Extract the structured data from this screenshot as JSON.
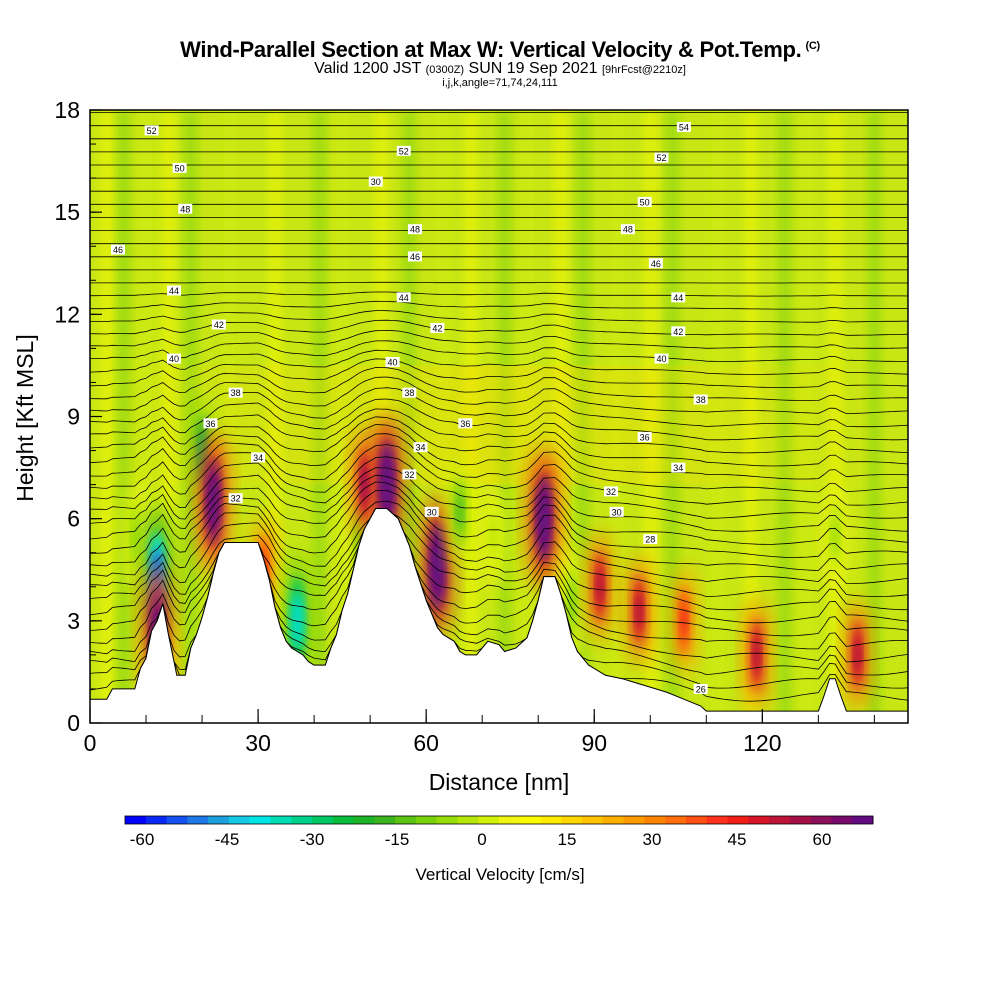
{
  "header": {
    "title": "Wind-Parallel Section at Max W: Vertical Velocity & Pot.Temp.",
    "title_mark": "(C)",
    "valid_prefix": "Valid 1200 JST",
    "valid_z": "(0300Z)",
    "valid_date": "SUN 19 Sep 2021",
    "valid_fcst": "[9hrFcst@2210z]",
    "section_params": "i,j,k,angle=71,74,24,111"
  },
  "chart_data": {
    "type": "heatmap",
    "title": "Wind-Parallel Section at Max W: Vertical Velocity & Pot.Temp.",
    "xlabel": "Distance [nm]",
    "ylabel": "Height [Kft MSL]",
    "xlim": [
      0,
      146
    ],
    "ylim": [
      0,
      18
    ],
    "x_ticks": [
      0,
      30,
      60,
      90,
      120
    ],
    "y_ticks": [
      0,
      3,
      6,
      9,
      12,
      15,
      18
    ],
    "terrain_profile": [
      [
        0,
        0.7
      ],
      [
        3,
        0.7
      ],
      [
        4,
        1.0
      ],
      [
        8,
        1.0
      ],
      [
        8.5,
        1.3
      ],
      [
        9,
        1.6
      ],
      [
        10,
        1.9
      ],
      [
        10.5,
        2.3
      ],
      [
        11,
        2.7
      ],
      [
        12,
        3.0
      ],
      [
        13,
        3.5
      ],
      [
        14,
        2.6
      ],
      [
        15,
        1.8
      ],
      [
        15.5,
        1.4
      ],
      [
        17,
        1.4
      ],
      [
        17.5,
        1.8
      ],
      [
        18,
        2.2
      ],
      [
        19,
        2.6
      ],
      [
        20,
        3.1
      ],
      [
        21,
        3.7
      ],
      [
        22,
        4.4
      ],
      [
        23,
        5.0
      ],
      [
        24,
        5.3
      ],
      [
        25,
        5.3
      ],
      [
        30,
        5.3
      ],
      [
        31,
        4.8
      ],
      [
        32,
        4.2
      ],
      [
        33,
        3.4
      ],
      [
        34,
        2.8
      ],
      [
        35,
        2.4
      ],
      [
        36,
        2.2
      ],
      [
        37,
        2.1
      ],
      [
        38,
        2.0
      ],
      [
        39,
        1.8
      ],
      [
        40,
        1.7
      ],
      [
        42,
        1.7
      ],
      [
        43,
        2.2
      ],
      [
        44,
        2.6
      ],
      [
        45,
        3.3
      ],
      [
        46,
        3.8
      ],
      [
        47,
        4.5
      ],
      [
        48,
        5.2
      ],
      [
        49,
        5.7
      ],
      [
        50,
        6.0
      ],
      [
        51,
        6.3
      ],
      [
        53,
        6.3
      ],
      [
        55,
        6.0
      ],
      [
        56,
        5.6
      ],
      [
        57,
        5.2
      ],
      [
        58,
        4.6
      ],
      [
        59,
        4.1
      ],
      [
        60,
        3.6
      ],
      [
        61,
        3.2
      ],
      [
        62,
        2.8
      ],
      [
        63,
        2.6
      ],
      [
        64,
        2.5
      ],
      [
        65,
        2.4
      ],
      [
        66,
        2.1
      ],
      [
        67,
        2.0
      ],
      [
        69,
        2.0
      ],
      [
        70,
        2.2
      ],
      [
        71,
        2.4
      ],
      [
        73,
        2.3
      ],
      [
        74,
        2.1
      ],
      [
        76,
        2.2
      ],
      [
        78,
        2.5
      ],
      [
        79,
        3.0
      ],
      [
        80,
        3.6
      ],
      [
        81,
        4.3
      ],
      [
        83,
        4.3
      ],
      [
        84,
        3.8
      ],
      [
        85,
        3.2
      ],
      [
        86,
        2.5
      ],
      [
        87,
        2.1
      ],
      [
        88,
        1.9
      ],
      [
        89,
        1.7
      ],
      [
        90,
        1.6
      ],
      [
        92,
        1.4
      ],
      [
        95,
        1.3
      ],
      [
        97,
        1.2
      ],
      [
        99,
        1.1
      ],
      [
        101,
        1.0
      ],
      [
        103,
        0.9
      ],
      [
        106,
        0.7
      ],
      [
        109,
        0.5
      ],
      [
        110,
        0.35
      ],
      [
        130,
        0.35
      ],
      [
        131,
        0.8
      ],
      [
        132,
        1.3
      ],
      [
        133,
        1.3
      ],
      [
        134,
        0.8
      ],
      [
        135,
        0.35
      ],
      [
        146,
        0.35
      ]
    ],
    "w_cells": [
      {
        "x": 8,
        "y": 5.5,
        "w": -18
      },
      {
        "x": 12,
        "y": 4.3,
        "w": -55
      },
      {
        "x": 12,
        "y": 2.6,
        "w": 45
      },
      {
        "x": 20,
        "y": 8.0,
        "w": -35
      },
      {
        "x": 22,
        "y": 6.5,
        "w": 50
      },
      {
        "x": 31,
        "y": 4.5,
        "w": 25
      },
      {
        "x": 37,
        "y": 3.0,
        "w": -45
      },
      {
        "x": 48,
        "y": 5.5,
        "w": -20
      },
      {
        "x": 49,
        "y": 7.0,
        "w": 40
      },
      {
        "x": 53,
        "y": 7.0,
        "w": 65
      },
      {
        "x": 62,
        "y": 4.6,
        "w": 60
      },
      {
        "x": 66,
        "y": 6.2,
        "w": -25
      },
      {
        "x": 72,
        "y": 5.5,
        "w": -15
      },
      {
        "x": 81,
        "y": 6.0,
        "w": 55
      },
      {
        "x": 86,
        "y": 3.5,
        "w": -20
      },
      {
        "x": 91,
        "y": 4.0,
        "w": 35
      },
      {
        "x": 98,
        "y": 3.3,
        "w": 35
      },
      {
        "x": 106,
        "y": 3.0,
        "w": 25
      },
      {
        "x": 119,
        "y": 2.0,
        "w": 35
      },
      {
        "x": 133,
        "y": 5.5,
        "w": -18
      },
      {
        "x": 137,
        "y": 2.0,
        "w": 35
      }
    ],
    "theta_labels": [
      {
        "x": 11,
        "y": 17.4,
        "label": "52"
      },
      {
        "x": 16,
        "y": 16.3,
        "label": "50"
      },
      {
        "x": 17,
        "y": 15.1,
        "label": "48"
      },
      {
        "x": 5,
        "y": 13.9,
        "label": "46"
      },
      {
        "x": 15,
        "y": 12.7,
        "label": "44"
      },
      {
        "x": 23,
        "y": 11.7,
        "label": "42"
      },
      {
        "x": 15,
        "y": 10.7,
        "label": "40"
      },
      {
        "x": 26,
        "y": 9.7,
        "label": "38"
      },
      {
        "x": 21.5,
        "y": 8.8,
        "label": "36"
      },
      {
        "x": 30,
        "y": 7.8,
        "label": "34"
      },
      {
        "x": 26,
        "y": 6.6,
        "label": "32"
      },
      {
        "x": 56,
        "y": 16.8,
        "label": "52"
      },
      {
        "x": 51,
        "y": 15.9,
        "label": "30"
      },
      {
        "x": 58,
        "y": 14.5,
        "label": "48"
      },
      {
        "x": 58,
        "y": 13.7,
        "label": "46"
      },
      {
        "x": 56,
        "y": 12.5,
        "label": "44"
      },
      {
        "x": 62,
        "y": 11.6,
        "label": "42"
      },
      {
        "x": 54,
        "y": 10.6,
        "label": "40"
      },
      {
        "x": 57,
        "y": 9.7,
        "label": "38"
      },
      {
        "x": 67,
        "y": 8.8,
        "label": "36"
      },
      {
        "x": 59,
        "y": 8.1,
        "label": "34"
      },
      {
        "x": 57,
        "y": 7.3,
        "label": "32"
      },
      {
        "x": 61,
        "y": 6.2,
        "label": "30"
      },
      {
        "x": 106,
        "y": 17.5,
        "label": "54"
      },
      {
        "x": 102,
        "y": 16.6,
        "label": "52"
      },
      {
        "x": 99,
        "y": 15.3,
        "label": "50"
      },
      {
        "x": 96,
        "y": 14.5,
        "label": "48"
      },
      {
        "x": 101,
        "y": 13.5,
        "label": "46"
      },
      {
        "x": 105,
        "y": 12.5,
        "label": "44"
      },
      {
        "x": 105,
        "y": 11.5,
        "label": "42"
      },
      {
        "x": 102,
        "y": 10.7,
        "label": "40"
      },
      {
        "x": 109,
        "y": 9.5,
        "label": "38"
      },
      {
        "x": 99,
        "y": 8.4,
        "label": "36"
      },
      {
        "x": 105,
        "y": 7.5,
        "label": "34"
      },
      {
        "x": 93,
        "y": 6.8,
        "label": "32"
      },
      {
        "x": 94,
        "y": 6.2,
        "label": "30"
      },
      {
        "x": 100,
        "y": 5.4,
        "label": "28"
      },
      {
        "x": 109,
        "y": 1.0,
        "label": "26"
      }
    ]
  },
  "colorbar": {
    "title": "Vertical Velocity [cm/s]",
    "min": -63,
    "max": 69,
    "step": 3,
    "tick_labels": [
      "-60",
      "-45",
      "-30",
      "-15",
      "0",
      "15",
      "30",
      "45",
      "60"
    ],
    "tick_values": [
      -60,
      -45,
      -30,
      -15,
      0,
      15,
      30,
      45,
      60
    ],
    "colors": [
      "#0000ff",
      "#0a28f5",
      "#1450f0",
      "#1e78e6",
      "#1ea0dc",
      "#14c8e6",
      "#00e6e6",
      "#00dcb4",
      "#00d28c",
      "#00c864",
      "#0abe3c",
      "#1eb428",
      "#3cb41e",
      "#5ac314",
      "#78d20a",
      "#96dc0a",
      "#b4e60a",
      "#d2f00a",
      "#f0f514",
      "#fafa00",
      "#ffeb00",
      "#ffd700",
      "#ffc300",
      "#ffaf00",
      "#ff9b00",
      "#ff8200",
      "#ff6e0a",
      "#ff5014",
      "#ff321e",
      "#f01e14",
      "#d71428",
      "#be1437",
      "#a50f46",
      "#8c0f5a",
      "#780a6e",
      "#640a82"
    ]
  }
}
